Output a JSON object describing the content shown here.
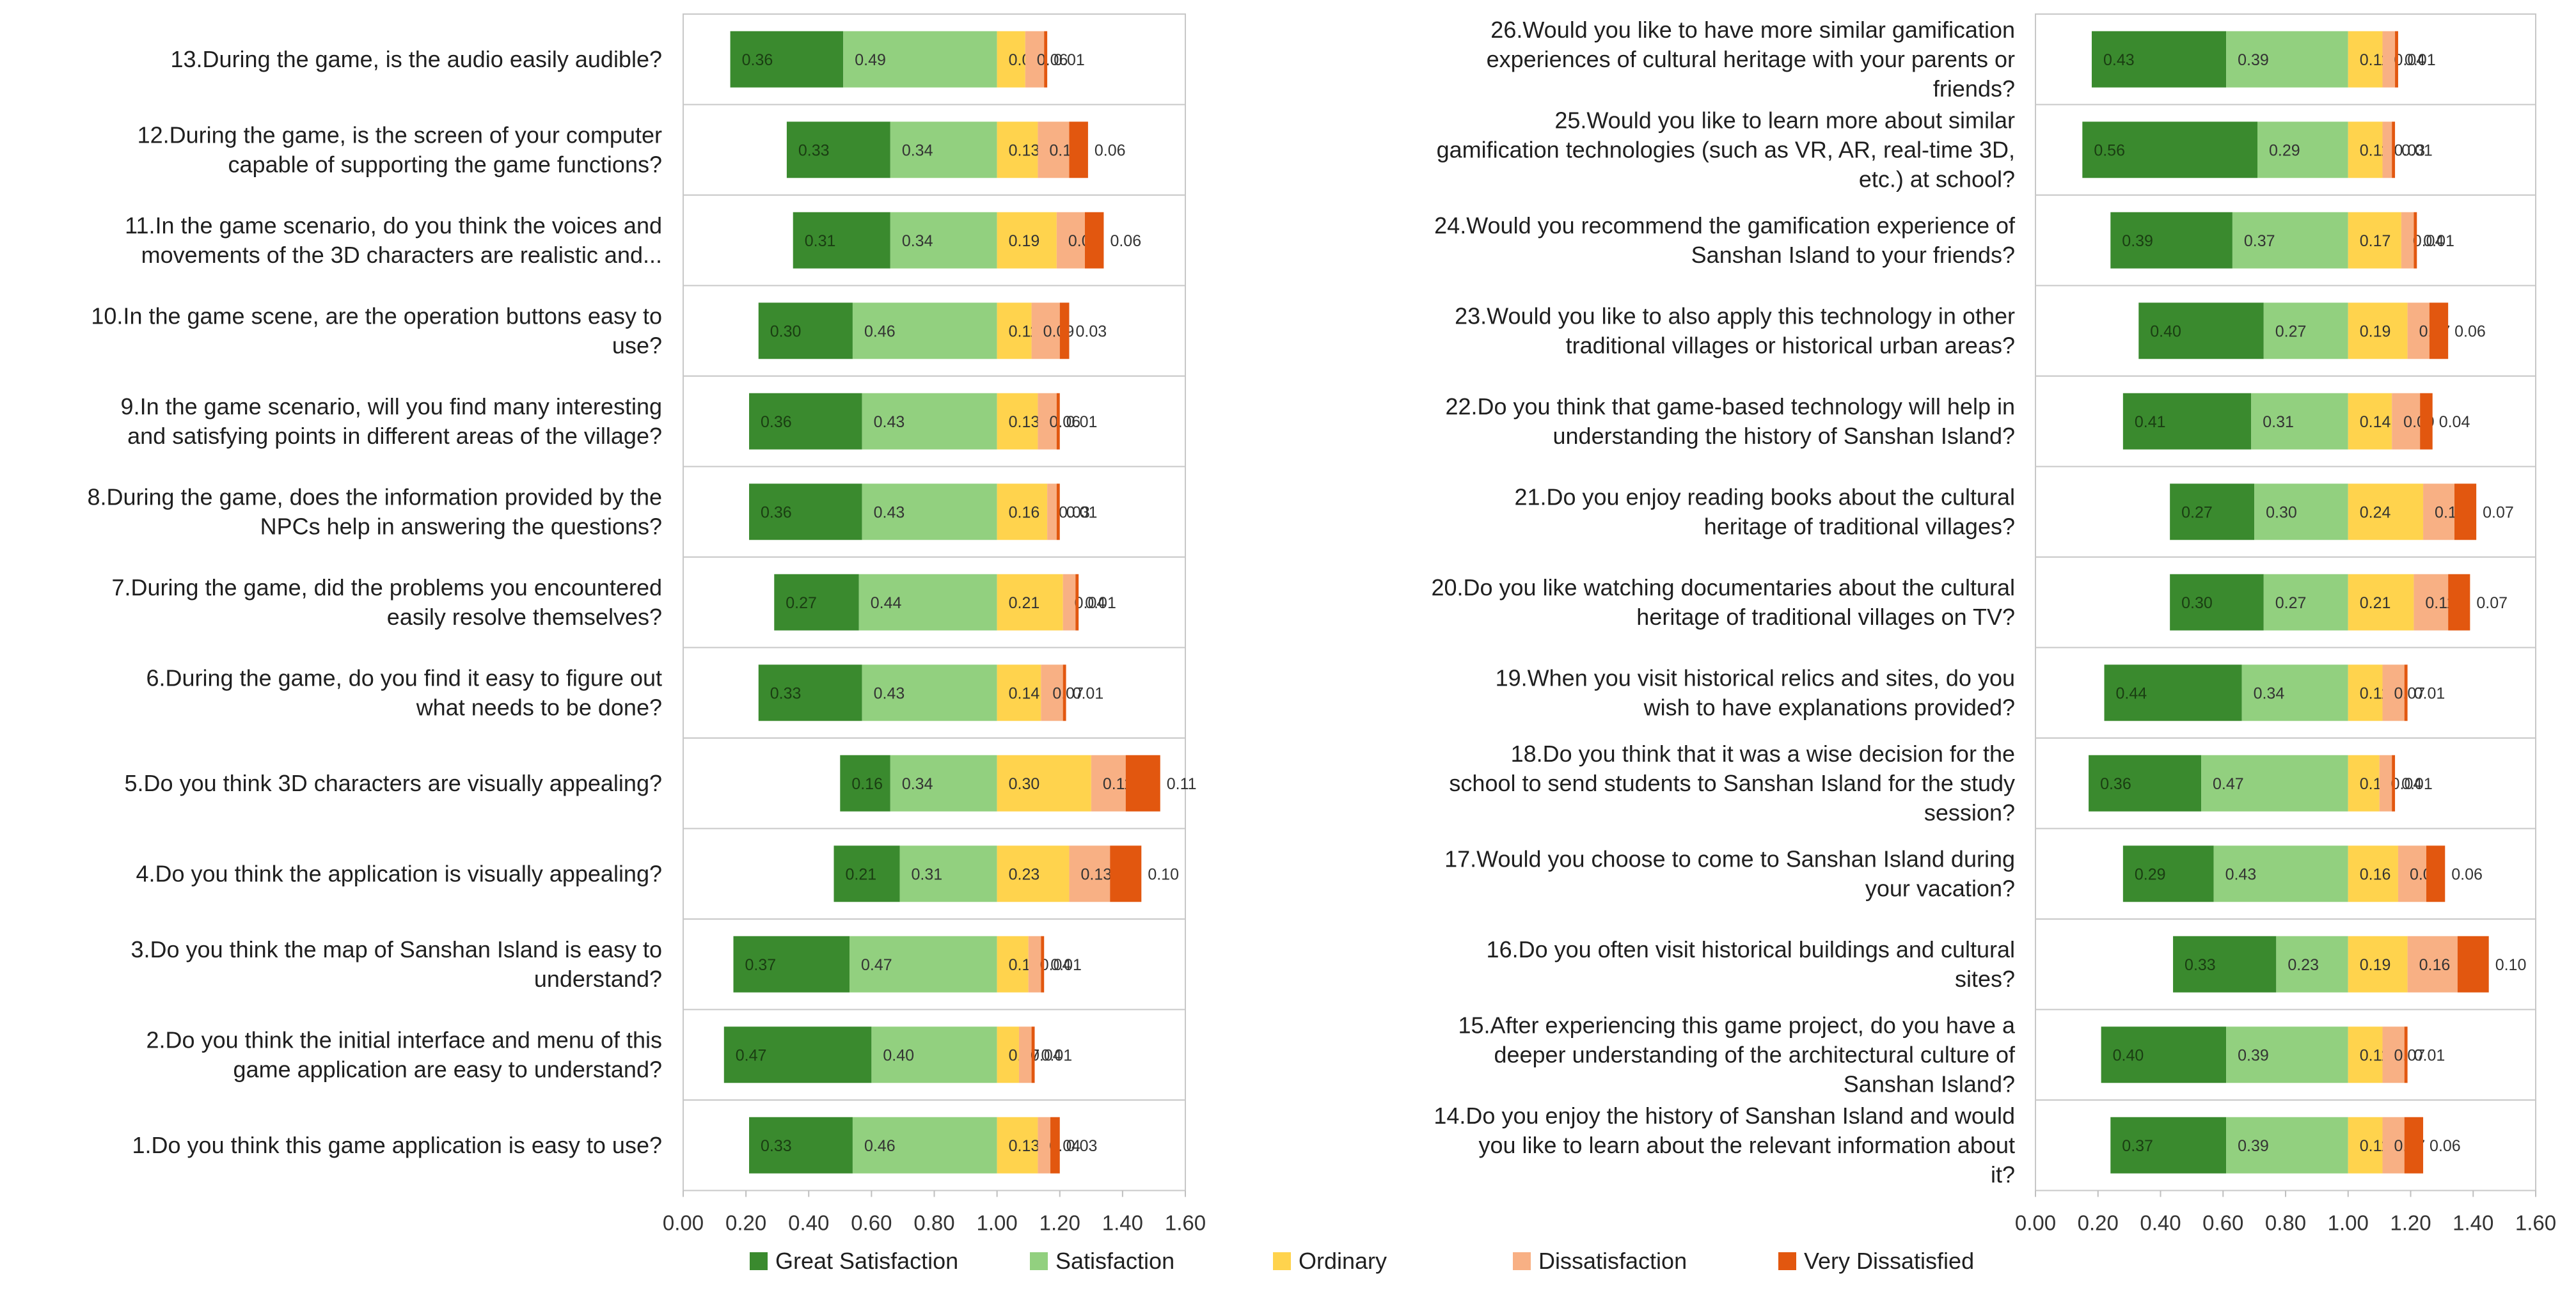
{
  "colors": {
    "categories": [
      "#3a8a2e",
      "#92d07f",
      "#ffd34d",
      "#f8b084",
      "#e2570f"
    ],
    "row_border": "#c8c8c8",
    "axis": "#bfbfbf"
  },
  "chart_data": [
    {
      "type": "bar",
      "stacked": true,
      "orientation": "horizontal",
      "title": "",
      "xlabel": "",
      "ylabel": "",
      "xlim": [
        0,
        1.6
      ],
      "xticks": [
        "0.00",
        "0.20",
        "0.40",
        "0.60",
        "0.80",
        "1.00",
        "1.20",
        "1.40",
        "1.60"
      ],
      "alignment": "satisfaction-diverging at 1.00",
      "questions": [
        {
          "label": "13.During the game, is the audio easily audible?",
          "values": [
            0.36,
            0.49,
            0.09,
            0.06,
            0.01
          ],
          "labels": [
            "0.36",
            "0.49",
            "0.09",
            "0.06",
            "0.01"
          ]
        },
        {
          "label": "12.During the game, is the screen of your computer capable of supporting the game functions?",
          "values": [
            0.33,
            0.34,
            0.13,
            0.1,
            0.06
          ],
          "labels": [
            "0.33",
            "0.34",
            "0.13",
            "0.10",
            "0.06"
          ]
        },
        {
          "label": "11.In the game scenario, do you think the voices and movements of the 3D characters are realistic and...",
          "values": [
            0.31,
            0.34,
            0.19,
            0.09,
            0.06
          ],
          "labels": [
            "0.31",
            "0.34",
            "0.19",
            "0.09",
            "0.06"
          ]
        },
        {
          "label": "10.In the game scene, are the operation buttons easy to use?",
          "values": [
            0.3,
            0.46,
            0.11,
            0.09,
            0.03
          ],
          "labels": [
            "0.30",
            "0.46",
            "0.11",
            "0.09",
            "0.03"
          ]
        },
        {
          "label": "9.In the game scenario, will you find many interesting and satisfying points in different areas of the village?",
          "values": [
            0.36,
            0.43,
            0.13,
            0.06,
            0.01
          ],
          "labels": [
            "0.36",
            "0.43",
            "0.13",
            "0.06",
            "0.01"
          ]
        },
        {
          "label": "8.During the game, does the information provided by the NPCs help in answering the questions?",
          "values": [
            0.36,
            0.43,
            0.16,
            0.03,
            0.01
          ],
          "labels": [
            "0.36",
            "0.43",
            "0.16",
            "0.03",
            "0.01"
          ]
        },
        {
          "label": "7.During the game, did the problems you encountered easily resolve themselves?",
          "values": [
            0.27,
            0.44,
            0.21,
            0.04,
            0.01
          ],
          "labels": [
            "0.27",
            "0.44",
            "0.21",
            "0.04",
            "0.01"
          ]
        },
        {
          "label": "6.During the game, do you find it easy to figure out what needs to be done?",
          "values": [
            0.33,
            0.43,
            0.14,
            0.07,
            0.01
          ],
          "labels": [
            "0.33",
            "0.43",
            "0.14",
            "0.07",
            "0.01"
          ]
        },
        {
          "label": "5.Do you think 3D characters are visually appealing?",
          "values": [
            0.16,
            0.34,
            0.3,
            0.11,
            0.11
          ],
          "labels": [
            "0.16",
            "0.34",
            "0.30",
            "0.11",
            "0.11"
          ]
        },
        {
          "label": "4.Do you think the application is visually appealing?",
          "values": [
            0.21,
            0.31,
            0.23,
            0.13,
            0.1
          ],
          "labels": [
            "0.21",
            "0.31",
            "0.23",
            "0.13",
            "0.10"
          ]
        },
        {
          "label": "3.Do you think the map of Sanshan Island is easy to understand?",
          "values": [
            0.37,
            0.47,
            0.1,
            0.04,
            0.01
          ],
          "labels": [
            "0.37",
            "0.47",
            "0.10",
            "0.04",
            "0.01"
          ]
        },
        {
          "label": "2.Do you think the initial interface and menu of this game application are easy to understand?",
          "values": [
            0.47,
            0.4,
            0.07,
            0.04,
            0.01
          ],
          "labels": [
            "0.47",
            "0.40",
            "0.07",
            "0.04",
            "0.01"
          ]
        },
        {
          "label": "1.Do you think this game application is easy to use?",
          "values": [
            0.33,
            0.46,
            0.13,
            0.04,
            0.03
          ],
          "labels": [
            "0.33",
            "0.46",
            "0.13",
            "0.04",
            "0.03"
          ]
        }
      ]
    },
    {
      "type": "bar",
      "stacked": true,
      "orientation": "horizontal",
      "title": "",
      "xlabel": "",
      "ylabel": "",
      "xlim": [
        0,
        1.6
      ],
      "xticks": [
        "0.00",
        "0.20",
        "0.40",
        "0.60",
        "0.80",
        "1.00",
        "1.20",
        "1.40",
        "1.60"
      ],
      "alignment": "satisfaction-diverging at 1.00",
      "questions": [
        {
          "label": "26.Would you like to have more similar gamification experiences of cultural heritage with your parents or friends?",
          "values": [
            0.43,
            0.39,
            0.11,
            0.04,
            0.01
          ],
          "labels": [
            "0.43",
            "0.39",
            "0.11",
            "0.04",
            "0.01"
          ]
        },
        {
          "label": "25.Would you like to learn more about similar gamification technologies (such as VR, AR, real-time 3D, etc.) at school?",
          "values": [
            0.56,
            0.29,
            0.11,
            0.03,
            0.01
          ],
          "labels": [
            "0.56",
            "0.29",
            "0.11",
            "0.03",
            "0.01"
          ]
        },
        {
          "label": "24.Would you recommend the gamification experience of Sanshan Island to your friends?",
          "values": [
            0.39,
            0.37,
            0.17,
            0.04,
            0.01
          ],
          "labels": [
            "0.39",
            "0.37",
            "0.17",
            "0.04",
            "0.01"
          ]
        },
        {
          "label": "23.Would you like to also apply this technology in other traditional villages or historical urban areas?",
          "values": [
            0.4,
            0.27,
            0.19,
            0.07,
            0.06
          ],
          "labels": [
            "0.40",
            "0.27",
            "0.19",
            "0.07",
            "0.06"
          ]
        },
        {
          "label": "22.Do you think that game-based technology will help in understanding the history of Sanshan Island?",
          "values": [
            0.41,
            0.31,
            0.14,
            0.09,
            0.04
          ],
          "labels": [
            "0.41",
            "0.31",
            "0.14",
            "0.09",
            "0.04"
          ]
        },
        {
          "label": "21.Do you enjoy reading books about the cultural heritage of traditional villages?",
          "values": [
            0.27,
            0.3,
            0.24,
            0.1,
            0.07
          ],
          "labels": [
            "0.27",
            "0.30",
            "0.24",
            "0.10",
            "0.07"
          ]
        },
        {
          "label": "20.Do you like watching documentaries about the cultural heritage of traditional villages on TV?",
          "values": [
            0.3,
            0.27,
            0.21,
            0.11,
            0.07
          ],
          "labels": [
            "0.30",
            "0.27",
            "0.21",
            "0.11",
            "0.07"
          ]
        },
        {
          "label": "19.When you visit historical relics and sites, do you wish to have explanations provided?",
          "values": [
            0.44,
            0.34,
            0.11,
            0.07,
            0.01
          ],
          "labels": [
            "0.44",
            "0.34",
            "0.11",
            "0.07",
            "0.01"
          ]
        },
        {
          "label": "18.Do you think that it was a wise decision for the school to send students to Sanshan Island for the study session?",
          "values": [
            0.36,
            0.47,
            0.1,
            0.04,
            0.01
          ],
          "labels": [
            "0.36",
            "0.47",
            "0.10",
            "0.04",
            "0.01"
          ]
        },
        {
          "label": "17.Would you choose to come to Sanshan Island during your vacation?",
          "values": [
            0.29,
            0.43,
            0.16,
            0.09,
            0.06
          ],
          "labels": [
            "0.29",
            "0.43",
            "0.16",
            "0.09",
            "0.06"
          ]
        },
        {
          "label": "16.Do you often visit historical buildings and cultural sites?",
          "values": [
            0.33,
            0.23,
            0.19,
            0.16,
            0.1
          ],
          "labels": [
            "0.33",
            "0.23",
            "0.19",
            "0.16",
            "0.10"
          ]
        },
        {
          "label": "15.After experiencing this game project, do you have a deeper understanding of the architectural culture of Sanshan Island?",
          "values": [
            0.4,
            0.39,
            0.11,
            0.07,
            0.01
          ],
          "labels": [
            "0.40",
            "0.39",
            "0.11",
            "0.07",
            "0.01"
          ]
        },
        {
          "label": "14.Do you enjoy the history of Sanshan Island and would you like to learn about the relevant information about it?",
          "values": [
            0.37,
            0.39,
            0.11,
            0.07,
            0.06
          ],
          "labels": [
            "0.37",
            "0.39",
            "0.11",
            "0.07",
            "0.06"
          ]
        }
      ]
    }
  ],
  "legend": {
    "placement": "bottom-center",
    "items": [
      "Great Satisfaction",
      "Satisfaction",
      "Ordinary",
      "Dissatisfaction",
      "Very Dissatisfied"
    ]
  }
}
